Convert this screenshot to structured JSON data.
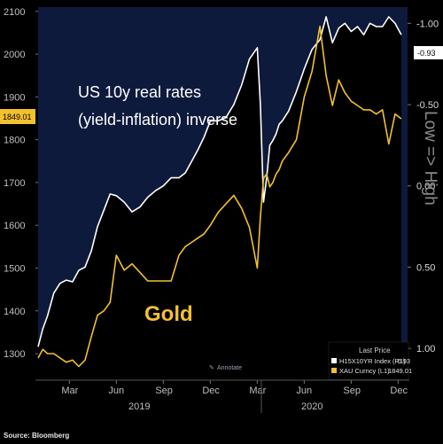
{
  "chart_data": {
    "type": "line",
    "left_axis": {
      "ticks": [
        1300,
        1400,
        1500,
        1600,
        1700,
        1800,
        1900,
        2000,
        2100
      ],
      "ylim": [
        1240,
        2110
      ]
    },
    "right_axis": {
      "ticks": [
        "-1.00",
        "-0.50",
        "0.00",
        "0.50",
        "1.00"
      ],
      "ylim": [
        1.19,
        -1.1
      ],
      "inverted": true
    },
    "x_ticks": [
      "Mar",
      "Jun",
      "Sep",
      "Dec",
      "Mar",
      "Jun",
      "Sep",
      "Dec"
    ],
    "years": [
      "2019",
      "2020"
    ],
    "title_annotation": [
      "US 10y real rates",
      "(yield-inflation) inverse"
    ],
    "gold_annotation": "Gold",
    "side_label": "Low => High",
    "annotate_label": "Annotate",
    "source": "Source: Bloomberg",
    "colors": {
      "real_rates": "#ffffff",
      "gold": "#f2c12e",
      "plot_bg": "#0e1a3c"
    },
    "current_values": {
      "real_rates": "-0.93",
      "gold": "1849.01"
    },
    "legend": {
      "title": "Last Price",
      "items": [
        {
          "name": "H15X10YR Index (R1)",
          "value": "-0.93",
          "color": "#ffffff"
        },
        {
          "name": "XAU Curncy (L1)",
          "value": "1849.01",
          "color": "#f2c12e"
        }
      ]
    },
    "series": [
      {
        "name": "H15X10YR Index (R1)",
        "axis": "right",
        "x": [
          0,
          0.3,
          0.6,
          1,
          1.4,
          1.8,
          2.2,
          2.6,
          3,
          3.4,
          3.8,
          4.2,
          4.6,
          5,
          5.5,
          6,
          6.5,
          7,
          7.5,
          8,
          8.5,
          9,
          9.4,
          9.8,
          10.2,
          10.6,
          11,
          11.5,
          12,
          12.5,
          13,
          13.5,
          14,
          14.2,
          14.4,
          14.6,
          14.8,
          15,
          15.2,
          15.4,
          15.6,
          16,
          16.5,
          17,
          17.5,
          18,
          18.4,
          18.8,
          19.2,
          19.6,
          20,
          20.4,
          20.8,
          21.2,
          21.6,
          22,
          22.4,
          22.8,
          23.2
        ],
        "y": [
          0.99,
          0.88,
          0.8,
          0.66,
          0.6,
          0.58,
          0.59,
          0.52,
          0.5,
          0.4,
          0.25,
          0.15,
          0.05,
          0.06,
          0.1,
          0.16,
          0.13,
          0.07,
          0.03,
          0.0,
          -0.05,
          -0.05,
          -0.08,
          -0.15,
          -0.22,
          -0.3,
          -0.4,
          -0.4,
          -0.42,
          -0.5,
          -0.62,
          -0.78,
          -0.85,
          -0.5,
          0.1,
          -0.05,
          -0.25,
          -0.28,
          -0.32,
          -0.38,
          -0.4,
          -0.46,
          -0.58,
          -0.72,
          -0.84,
          -0.9,
          -1.04,
          -0.88,
          -0.97,
          -1.0,
          -0.95,
          -0.98,
          -0.93,
          -1.0,
          -0.98,
          -0.98,
          -1.04,
          -1.0,
          -0.93
        ]
      },
      {
        "name": "XAU Curncy (L1)",
        "axis": "left",
        "x": [
          0,
          0.3,
          0.6,
          1,
          1.4,
          1.8,
          2.2,
          2.6,
          3,
          3.4,
          3.8,
          4.2,
          4.6,
          5,
          5.5,
          6,
          6.5,
          7,
          7.5,
          8,
          8.5,
          9,
          9.4,
          9.8,
          10.2,
          10.6,
          11,
          11.5,
          12,
          12.5,
          13,
          13.5,
          14,
          14.2,
          14.4,
          14.6,
          14.8,
          15,
          15.2,
          15.4,
          15.6,
          16,
          16.5,
          17,
          17.5,
          18,
          18.4,
          18.8,
          19.2,
          19.6,
          20,
          20.4,
          20.8,
          21.2,
          21.6,
          22,
          22.4,
          22.8,
          23.2
        ],
        "y": [
          1290,
          1310,
          1300,
          1300,
          1290,
          1280,
          1285,
          1270,
          1285,
          1340,
          1390,
          1400,
          1420,
          1530,
          1495,
          1510,
          1490,
          1470,
          1470,
          1470,
          1470,
          1530,
          1550,
          1560,
          1570,
          1580,
          1600,
          1630,
          1650,
          1670,
          1640,
          1595,
          1500,
          1620,
          1710,
          1720,
          1690,
          1700,
          1720,
          1730,
          1750,
          1770,
          1800,
          1900,
          1960,
          2065,
          1950,
          1880,
          1940,
          1910,
          1890,
          1880,
          1870,
          1870,
          1860,
          1870,
          1790,
          1860,
          1849
        ]
      }
    ]
  }
}
